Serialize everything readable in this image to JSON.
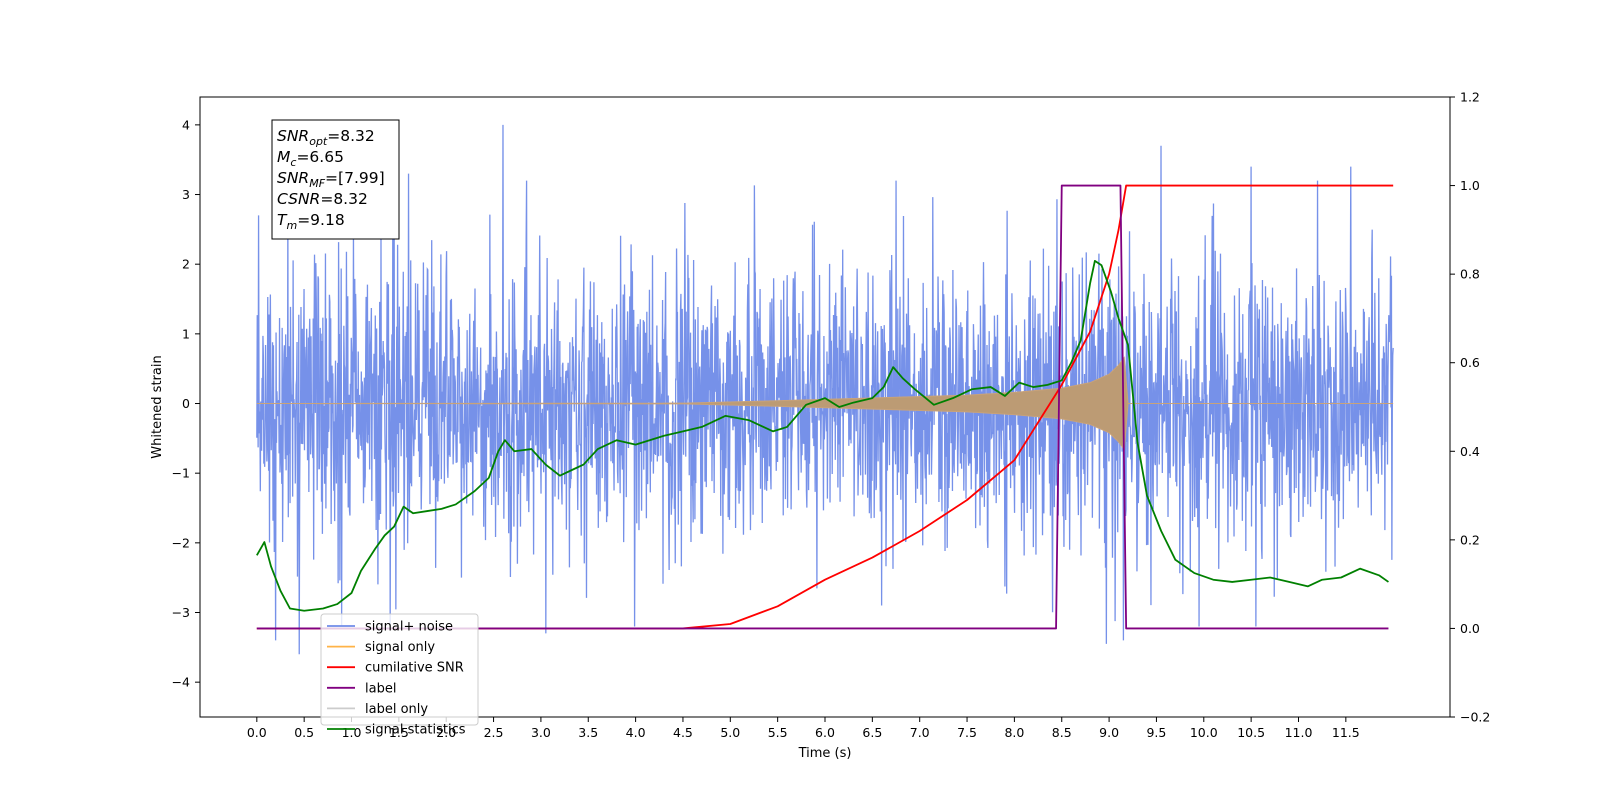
{
  "chart_data": {
    "type": "line",
    "xlabel": "Time (s)",
    "ylabel": "Whitened strain",
    "xlim": [
      -0.6,
      12.6
    ],
    "ylim": [
      -4.5,
      4.4
    ],
    "y2lim": [
      -0.2,
      1.2
    ],
    "x_ticks": [
      "0.0",
      "0.5",
      "1.0",
      "1.5",
      "2.0",
      "2.5",
      "3.0",
      "3.5",
      "4.0",
      "4.5",
      "5.0",
      "5.5",
      "6.0",
      "6.5",
      "7.0",
      "7.5",
      "8.0",
      "8.5",
      "9.0",
      "9.5",
      "10.0",
      "10.5",
      "11.0",
      "11.5"
    ],
    "y_ticks": [
      "4",
      "3",
      "2",
      "1",
      "0",
      "−1",
      "−2",
      "−3",
      "−4"
    ],
    "y2_ticks": [
      "1.2",
      "1.0",
      "0.8",
      "0.6",
      "0.4",
      "0.2",
      "0.0",
      "−0.2"
    ],
    "annotation": [
      {
        "base": "SNR",
        "sub": "opt",
        "value": "=8.32"
      },
      {
        "base": "M",
        "sub": "c",
        "value": "=6.65"
      },
      {
        "base": "SNR",
        "sub": "MF",
        "value": "=[7.99]"
      },
      {
        "base": "CSNR",
        "sub": "",
        "value": "=8.32"
      },
      {
        "base": "T",
        "sub": "m",
        "value": "=9.18"
      }
    ],
    "legend": {
      "placement": "lower-left",
      "entries": [
        {
          "label": "signal+ noise",
          "color": "#6f8be8"
        },
        {
          "label": "signal only",
          "color": "#ffb347"
        },
        {
          "label": "cumilative SNR",
          "color": "#ff0000"
        },
        {
          "label": "label",
          "color": "#800080"
        },
        {
          "label": "label only",
          "color": "#cccccc"
        },
        {
          "label": "signal statistics",
          "color": "#008000"
        }
      ]
    },
    "series": [
      {
        "name": "signal+ noise",
        "axis": "left",
        "color": "#6f8be8",
        "x_range": [
          0.0,
          12.0
        ],
        "noise_sigma": 1.0,
        "extremes": [
          {
            "x": 0.02,
            "y": 2.7
          },
          {
            "x": 0.2,
            "y": -3.4
          },
          {
            "x": 0.45,
            "y": -3.6
          },
          {
            "x": 1.45,
            "y": 3.1
          },
          {
            "x": 1.6,
            "y": 3.3
          },
          {
            "x": 2.6,
            "y": 4.0
          },
          {
            "x": 3.05,
            "y": -3.3
          },
          {
            "x": 6.6,
            "y": -2.9
          },
          {
            "x": 6.75,
            "y": 3.2
          },
          {
            "x": 9.55,
            "y": 3.7
          },
          {
            "x": 10.5,
            "y": 3.4
          },
          {
            "x": 8.97,
            "y": -3.45
          },
          {
            "x": 9.15,
            "y": -3.4
          },
          {
            "x": 11.55,
            "y": 3.4
          },
          {
            "x": 11.2,
            "y": 3.2
          }
        ]
      },
      {
        "name": "signal only",
        "axis": "left",
        "color": "#ffb347",
        "envelope": [
          [
            0.0,
            0.0
          ],
          [
            4.5,
            0.005
          ],
          [
            5.5,
            0.04
          ],
          [
            6.5,
            0.08
          ],
          [
            7.5,
            0.12
          ],
          [
            8.0,
            0.16
          ],
          [
            8.5,
            0.22
          ],
          [
            8.8,
            0.3
          ],
          [
            9.0,
            0.42
          ],
          [
            9.1,
            0.55
          ],
          [
            9.17,
            0.68
          ],
          [
            9.19,
            0.0
          ],
          [
            12.0,
            0.0
          ]
        ]
      },
      {
        "name": "cumilative SNR",
        "axis": "right",
        "color": "#ff0000",
        "points": [
          [
            0.0,
            0.0
          ],
          [
            4.5,
            0.0
          ],
          [
            5.0,
            0.01
          ],
          [
            5.5,
            0.05
          ],
          [
            6.0,
            0.11
          ],
          [
            6.5,
            0.16
          ],
          [
            7.0,
            0.22
          ],
          [
            7.5,
            0.29
          ],
          [
            8.0,
            0.38
          ],
          [
            8.5,
            0.55
          ],
          [
            8.8,
            0.67
          ],
          [
            9.0,
            0.8
          ],
          [
            9.1,
            0.9
          ],
          [
            9.18,
            1.0
          ],
          [
            12.0,
            1.0
          ]
        ]
      },
      {
        "name": "label",
        "axis": "right",
        "color": "#800080",
        "points": [
          [
            0.0,
            0.0
          ],
          [
            8.44,
            0.0
          ],
          [
            8.5,
            1.0
          ],
          [
            9.12,
            1.0
          ],
          [
            9.18,
            0.0
          ],
          [
            11.95,
            0.0
          ]
        ]
      },
      {
        "name": "signal statistics",
        "axis": "right",
        "color": "#008000",
        "points": [
          [
            0.0,
            0.165
          ],
          [
            0.08,
            0.195
          ],
          [
            0.15,
            0.14
          ],
          [
            0.25,
            0.085
          ],
          [
            0.35,
            0.045
          ],
          [
            0.5,
            0.04
          ],
          [
            0.7,
            0.045
          ],
          [
            0.85,
            0.055
          ],
          [
            1.0,
            0.08
          ],
          [
            1.1,
            0.13
          ],
          [
            1.25,
            0.18
          ],
          [
            1.35,
            0.21
          ],
          [
            1.45,
            0.23
          ],
          [
            1.55,
            0.275
          ],
          [
            1.65,
            0.26
          ],
          [
            1.8,
            0.265
          ],
          [
            1.95,
            0.27
          ],
          [
            2.1,
            0.28
          ],
          [
            2.3,
            0.31
          ],
          [
            2.45,
            0.34
          ],
          [
            2.55,
            0.4
          ],
          [
            2.62,
            0.425
          ],
          [
            2.72,
            0.4
          ],
          [
            2.9,
            0.405
          ],
          [
            3.05,
            0.37
          ],
          [
            3.2,
            0.345
          ],
          [
            3.35,
            0.36
          ],
          [
            3.45,
            0.37
          ],
          [
            3.6,
            0.405
          ],
          [
            3.8,
            0.425
          ],
          [
            4.0,
            0.415
          ],
          [
            4.3,
            0.435
          ],
          [
            4.5,
            0.445
          ],
          [
            4.7,
            0.455
          ],
          [
            4.95,
            0.48
          ],
          [
            5.2,
            0.47
          ],
          [
            5.45,
            0.445
          ],
          [
            5.6,
            0.455
          ],
          [
            5.8,
            0.505
          ],
          [
            6.0,
            0.52
          ],
          [
            6.15,
            0.5
          ],
          [
            6.3,
            0.51
          ],
          [
            6.5,
            0.52
          ],
          [
            6.62,
            0.545
          ],
          [
            6.72,
            0.59
          ],
          [
            6.82,
            0.565
          ],
          [
            6.95,
            0.54
          ],
          [
            7.15,
            0.505
          ],
          [
            7.35,
            0.52
          ],
          [
            7.55,
            0.54
          ],
          [
            7.75,
            0.545
          ],
          [
            7.9,
            0.525
          ],
          [
            8.05,
            0.555
          ],
          [
            8.2,
            0.545
          ],
          [
            8.35,
            0.55
          ],
          [
            8.5,
            0.56
          ],
          [
            8.6,
            0.6
          ],
          [
            8.7,
            0.65
          ],
          [
            8.8,
            0.78
          ],
          [
            8.85,
            0.83
          ],
          [
            8.92,
            0.82
          ],
          [
            9.02,
            0.76
          ],
          [
            9.1,
            0.7
          ],
          [
            9.2,
            0.64
          ],
          [
            9.3,
            0.42
          ],
          [
            9.4,
            0.3
          ],
          [
            9.55,
            0.22
          ],
          [
            9.7,
            0.155
          ],
          [
            9.9,
            0.125
          ],
          [
            10.1,
            0.11
          ],
          [
            10.3,
            0.105
          ],
          [
            10.5,
            0.11
          ],
          [
            10.7,
            0.115
          ],
          [
            10.9,
            0.105
          ],
          [
            11.1,
            0.095
          ],
          [
            11.25,
            0.11
          ],
          [
            11.45,
            0.115
          ],
          [
            11.65,
            0.135
          ],
          [
            11.85,
            0.12
          ],
          [
            11.95,
            0.105
          ]
        ]
      }
    ]
  }
}
